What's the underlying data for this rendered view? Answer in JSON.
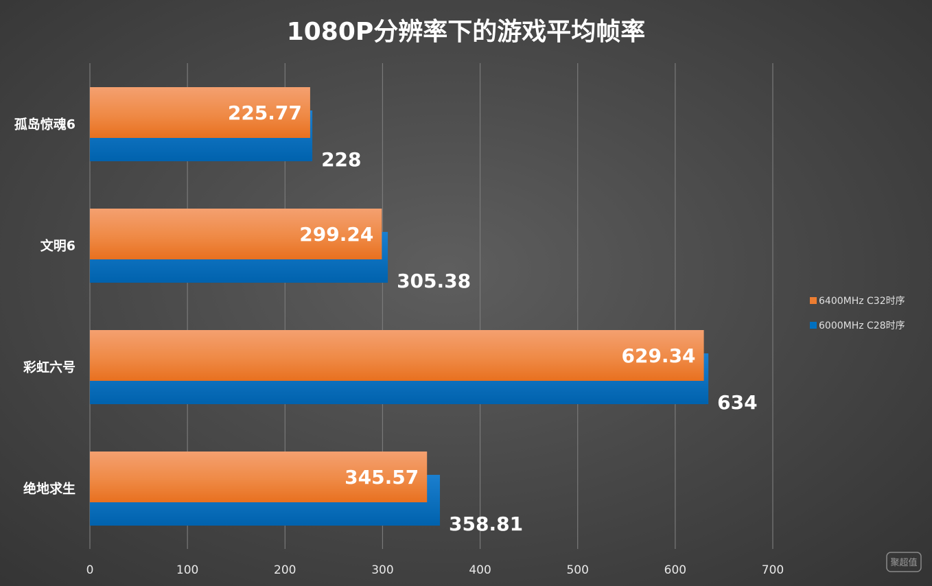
{
  "chart_data": {
    "type": "bar",
    "orientation": "horizontal",
    "title": "1080P分辨率下的游戏平均帧率",
    "categories": [
      "孤岛惊魂6",
      "文明6",
      "彩虹六号",
      "绝地求生"
    ],
    "series": [
      {
        "name": "6400MHz C32时序",
        "color": "#ed7d31",
        "values": [
          225.77,
          299.24,
          629.34,
          345.57
        ],
        "labels": [
          "225.77",
          "299.24",
          "629.34",
          "345.57"
        ]
      },
      {
        "name": "6000MHz C28时序",
        "color": "#0070c0",
        "values": [
          228,
          305.38,
          634,
          358.81
        ],
        "labels": [
          "228",
          "305.38",
          "634",
          "358.81"
        ]
      }
    ],
    "xlim": [
      0,
      700
    ],
    "xticks": [
      0,
      100,
      200,
      300,
      400,
      500,
      600,
      700
    ],
    "xtick_labels": [
      "0",
      "100",
      "200",
      "300",
      "400",
      "500",
      "600",
      "700"
    ],
    "grid": true,
    "legend_position": "right"
  },
  "watermark": {
    "text": "聚超值"
  }
}
